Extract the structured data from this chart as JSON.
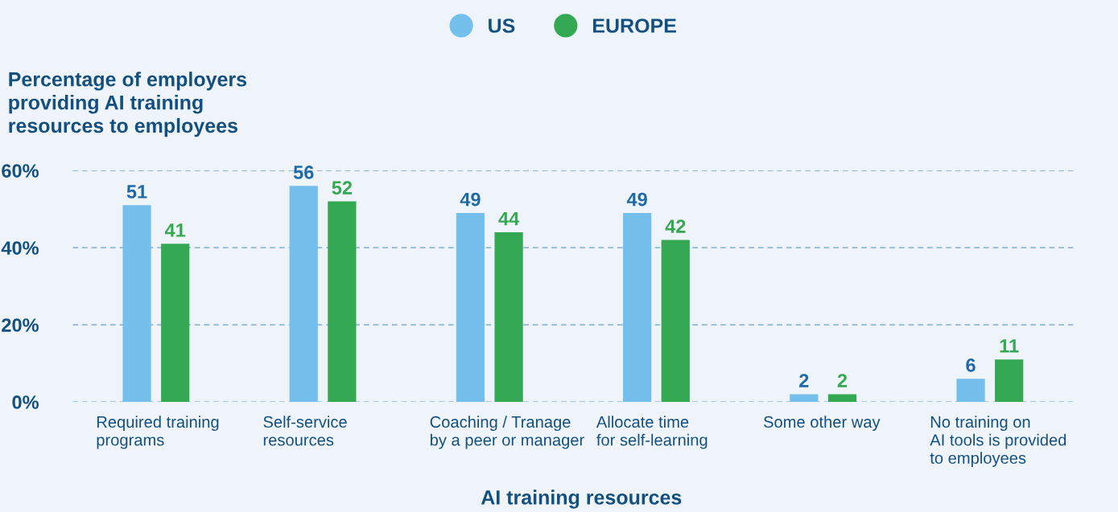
{
  "chart_data": {
    "type": "bar",
    "ylabel": "Percentage of employers\nproviding AI training\nresources to employees",
    "xlabel": "AI training resources",
    "categories": [
      "Required training\nprograms",
      "Self-service\nresources",
      "Coaching / Tranage\nby a peer or manager",
      "Allocate time\nfor self-learning",
      "Some other way",
      "No training on\nAI tools is provided\nto employees"
    ],
    "series": [
      {
        "name": "US",
        "color": "#74bfec",
        "values": [
          51,
          56,
          49,
          49,
          2,
          6
        ]
      },
      {
        "name": "EUROPE",
        "color": "#34a853",
        "values": [
          41,
          52,
          44,
          42,
          2,
          11
        ]
      }
    ],
    "ylim": [
      0,
      60
    ],
    "yticks": [
      {
        "value": 0,
        "label": "0%"
      },
      {
        "value": 20,
        "label": "20%"
      },
      {
        "value": 40,
        "label": "40%"
      },
      {
        "value": 60,
        "label": "60%"
      }
    ],
    "grid": "y",
    "legend": "top",
    "data_labels": true
  }
}
